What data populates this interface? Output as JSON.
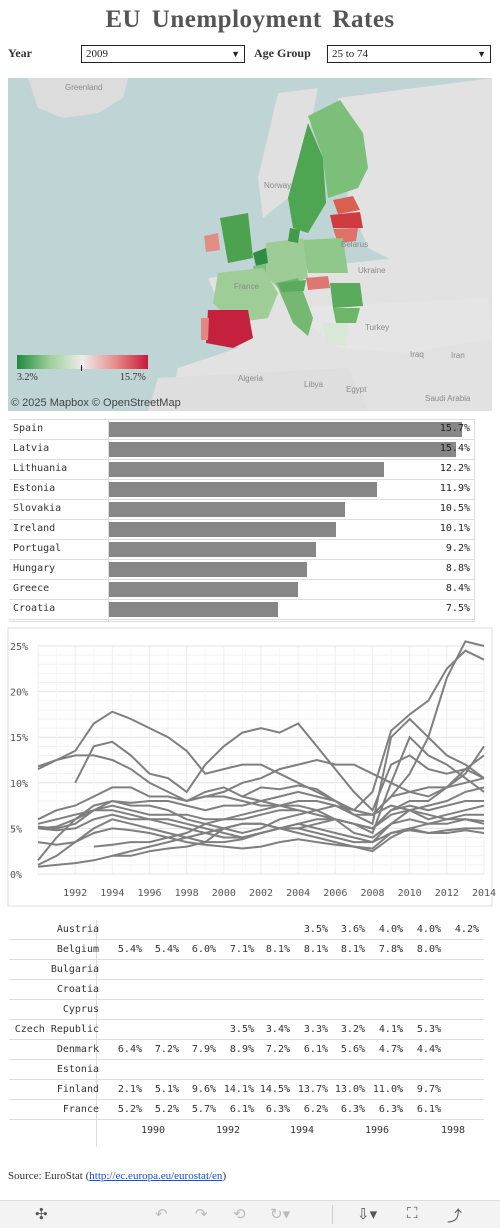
{
  "title": "EU Unemployment Rates",
  "filters": {
    "year_label": "Year",
    "year_value": "2009",
    "age_label": "Age Group",
    "age_value": "25 to 74"
  },
  "map": {
    "place_labels": [
      "Greenland",
      "Norway",
      "Belarus",
      "Ukraine",
      "France",
      "Turkey",
      "Iraq",
      "Iran",
      "Algeria",
      "Libya",
      "Egypt",
      "Saudi Arabia"
    ],
    "attribution": "© 2025 Mapbox  © OpenStreetMap",
    "legend_min": "3.2%",
    "legend_max": "15.7%",
    "colors": {
      "low": "#1e8a3e",
      "mid": "#ececec",
      "high": "#c8183a"
    }
  },
  "top_countries": [
    {
      "country": "Spain",
      "value": 15.7,
      "label": "15.7%"
    },
    {
      "country": "Latvia",
      "value": 15.4,
      "label": "15.4%"
    },
    {
      "country": "Lithuania",
      "value": 12.2,
      "label": "12.2%"
    },
    {
      "country": "Estonia",
      "value": 11.9,
      "label": "11.9%"
    },
    {
      "country": "Slovakia",
      "value": 10.5,
      "label": "10.5%"
    },
    {
      "country": "Ireland",
      "value": 10.1,
      "label": "10.1%"
    },
    {
      "country": "Portugal",
      "value": 9.2,
      "label": "9.2%"
    },
    {
      "country": "Hungary",
      "value": 8.8,
      "label": "8.8%"
    },
    {
      "country": "Greece",
      "value": 8.4,
      "label": "8.4%"
    },
    {
      "country": "Croatia",
      "value": 7.5,
      "label": "7.5%"
    }
  ],
  "chart_data": {
    "type": "line",
    "title": "",
    "xlabel": "",
    "ylabel": "",
    "xlim": [
      1990,
      2014
    ],
    "ylim": [
      0,
      25
    ],
    "x_ticks": [
      "1992",
      "1994",
      "1996",
      "1998",
      "2000",
      "2002",
      "2004",
      "2006",
      "2008",
      "2010",
      "2012",
      "2014"
    ],
    "y_ticks": [
      "0%",
      "5%",
      "10%",
      "15%",
      "20%",
      "25%"
    ],
    "grid": true,
    "line_color": "#7f7f7f",
    "series": [
      {
        "x": [
          2001,
          2002,
          2003,
          2004,
          2005,
          2006,
          2007,
          2008,
          2009,
          2010,
          2011,
          2012,
          2013,
          2014
        ],
        "y": [
          8.5,
          9.5,
          9.3,
          9.7,
          9.3,
          8.0,
          7.0,
          9.0,
          15.7,
          17.5,
          19.0,
          22.5,
          24.5,
          23.5
        ]
      },
      {
        "x": [
          1998,
          1999,
          2000,
          2001,
          2002,
          2003,
          2004,
          2005,
          2006,
          2007,
          2008,
          2009,
          2010,
          2011,
          2012,
          2013,
          2014
        ],
        "y": [
          8.0,
          9.0,
          9.5,
          8.5,
          8.0,
          7.5,
          8.0,
          8.0,
          7.5,
          6.5,
          6.5,
          8.5,
          11.0,
          15.0,
          21.5,
          25.5,
          25.0
        ]
      },
      {
        "x": [
          1994,
          1995,
          1996,
          1997,
          1998,
          1999,
          2000,
          2001,
          2002,
          2003,
          2004,
          2005,
          2006,
          2007,
          2008,
          2009,
          2010,
          2011,
          2012,
          2013,
          2014
        ],
        "y": [
          2.0,
          2.0,
          2.5,
          2.8,
          3.0,
          3.5,
          5.0,
          5.5,
          5.5,
          5.0,
          5.0,
          5.5,
          6.0,
          5.5,
          4.5,
          10.0,
          15.0,
          13.0,
          12.0,
          10.5,
          9.0
        ]
      },
      {
        "x": [
          1990,
          1991,
          1992,
          1993,
          1994,
          1995,
          1996,
          1997,
          1998,
          1999,
          2000,
          2001,
          2002,
          2003,
          2004,
          2005,
          2006,
          2007,
          2008,
          2009,
          2010,
          2011,
          2012,
          2013,
          2014
        ],
        "y": [
          11.5,
          12.5,
          13.5,
          16.5,
          17.8,
          17.0,
          16.0,
          15.0,
          13.5,
          11.0,
          11.5,
          12.0,
          12.0,
          11.0,
          10.0,
          9.0,
          8.0,
          6.5,
          5.5,
          15.0,
          17.0,
          15.0,
          13.0,
          12.0,
          10.5
        ]
      },
      {
        "x": [
          1992,
          1993,
          1994,
          1995,
          1996,
          1997,
          1998,
          1999,
          2000,
          2001,
          2002,
          2003,
          2004,
          2005,
          2006,
          2007,
          2008,
          2009,
          2010,
          2011,
          2012,
          2013,
          2014
        ],
        "y": [
          10.0,
          14.0,
          14.5,
          13.0,
          11.0,
          10.5,
          9.0,
          12.0,
          14.0,
          15.5,
          16.0,
          15.5,
          16.5,
          14.0,
          11.5,
          9.0,
          7.0,
          12.0,
          13.0,
          11.5,
          11.0,
          11.5,
          10.5
        ]
      },
      {
        "x": [
          1990,
          1991,
          1992,
          1993,
          1994,
          1995,
          1996,
          1997,
          1998,
          1999,
          2000,
          2001,
          2002,
          2003,
          2004,
          2005,
          2006,
          2007,
          2008,
          2009,
          2010,
          2011,
          2012,
          2013,
          2014
        ],
        "y": [
          11.8,
          12.5,
          13.0,
          13.0,
          12.5,
          11.5,
          10.0,
          9.0,
          8.0,
          8.5,
          9.0,
          10.0,
          10.5,
          11.5,
          12.0,
          12.5,
          12.0,
          12.0,
          11.0,
          10.0,
          9.0,
          9.5,
          9.5,
          11.0,
          14.0
        ]
      },
      {
        "x": [
          1990,
          1991,
          1992,
          1993,
          1994,
          1995,
          1996,
          1997,
          1998,
          1999,
          2000,
          2001,
          2002,
          2003,
          2004,
          2005,
          2006,
          2007,
          2008,
          2009,
          2010,
          2011,
          2012,
          2013,
          2014
        ],
        "y": [
          6.0,
          7.0,
          7.5,
          8.5,
          9.5,
          9.5,
          8.5,
          8.5,
          8.0,
          8.5,
          8.5,
          8.0,
          7.5,
          7.5,
          7.0,
          6.5,
          6.0,
          5.5,
          5.0,
          7.0,
          8.0,
          8.0,
          9.5,
          11.5,
          13.0
        ]
      },
      {
        "x": [
          1990,
          1991,
          1992,
          1993,
          1994,
          1995,
          1996,
          1997,
          1998,
          1999,
          2000,
          2001,
          2002,
          2003,
          2004,
          2005,
          2006,
          2007,
          2008,
          2009,
          2010,
          2011,
          2012,
          2013,
          2014
        ],
        "y": [
          5.2,
          5.0,
          5.5,
          7.0,
          8.0,
          7.8,
          8.0,
          8.0,
          7.5,
          7.0,
          7.5,
          7.5,
          8.0,
          8.5,
          9.0,
          8.5,
          8.0,
          7.0,
          6.5,
          8.5,
          9.0,
          8.5,
          9.5,
          10.0,
          10.5
        ]
      },
      {
        "x": [
          1990,
          1991,
          1992,
          1993,
          1994,
          1995,
          1996,
          1997,
          1998,
          1999,
          2000,
          2001,
          2002,
          2003,
          2004,
          2005,
          2006,
          2007,
          2008,
          2009,
          2010,
          2011,
          2012,
          2013,
          2014
        ],
        "y": [
          5.0,
          5.2,
          6.0,
          7.5,
          8.0,
          7.5,
          7.5,
          7.0,
          6.0,
          5.5,
          5.0,
          4.5,
          5.0,
          6.0,
          6.5,
          7.0,
          7.5,
          7.0,
          6.5,
          7.5,
          7.0,
          6.0,
          6.5,
          7.0,
          7.5
        ]
      },
      {
        "x": [
          1990,
          1991,
          1992,
          1993,
          1994,
          1995,
          1996,
          1997,
          1998,
          1999,
          2000,
          2001,
          2002,
          2003,
          2004,
          2005,
          2006,
          2007,
          2008,
          2009,
          2010,
          2011,
          2012,
          2013,
          2014
        ],
        "y": [
          5.0,
          4.8,
          5.0,
          6.0,
          6.5,
          6.0,
          6.0,
          6.0,
          5.5,
          5.0,
          4.5,
          4.0,
          4.5,
          5.0,
          5.5,
          5.0,
          4.5,
          4.0,
          3.5,
          5.5,
          6.0,
          5.5,
          5.5,
          6.0,
          5.8
        ]
      },
      {
        "x": [
          1990,
          1991,
          1992,
          1993,
          1994,
          1995,
          1996,
          1997,
          1998,
          1999,
          2000,
          2001,
          2002,
          2003,
          2004,
          2005,
          2006,
          2007,
          2008,
          2009,
          2010,
          2011,
          2012,
          2013,
          2014
        ],
        "y": [
          3.5,
          3.2,
          3.5,
          4.5,
          5.0,
          4.8,
          4.5,
          4.0,
          3.5,
          3.2,
          3.0,
          2.8,
          3.0,
          3.5,
          3.8,
          3.5,
          3.2,
          3.0,
          2.8,
          4.5,
          4.8,
          4.5,
          4.8,
          5.0,
          5.0
        ]
      },
      {
        "x": [
          1990,
          1991,
          1992,
          1993,
          1994,
          1995,
          1996,
          1997,
          1998,
          1999,
          2000,
          2001,
          2002,
          2003,
          2004,
          2005,
          2006,
          2007,
          2008,
          2009,
          2010,
          2011,
          2012,
          2013,
          2014
        ],
        "y": [
          0.8,
          1.0,
          1.2,
          1.5,
          2.0,
          2.5,
          3.0,
          3.5,
          4.0,
          4.5,
          5.0,
          5.5,
          5.5,
          5.0,
          4.5,
          4.0,
          3.5,
          3.0,
          2.5,
          4.0,
          5.0,
          5.5,
          6.0,
          6.5,
          6.5
        ]
      },
      {
        "x": [
          1990,
          1991,
          1992,
          1993,
          1994,
          1995,
          1996,
          1997,
          1998,
          1999,
          2000,
          2001,
          2002,
          2003,
          2004,
          2005,
          2006,
          2007,
          2008,
          2009,
          2010,
          2011,
          2012,
          2013,
          2014
        ],
        "y": [
          1.5,
          4.0,
          6.0,
          7.0,
          7.5,
          7.0,
          6.5,
          6.5,
          6.5,
          6.0,
          6.0,
          6.0,
          6.5,
          7.0,
          7.0,
          6.5,
          6.0,
          5.5,
          5.0,
          7.0,
          7.5,
          7.0,
          7.5,
          8.0,
          8.0
        ]
      },
      {
        "x": [
          1993,
          1994,
          1995,
          1996,
          1997,
          1998,
          1999,
          2000,
          2001,
          2002,
          2003,
          2004,
          2005,
          2006,
          2007,
          2008,
          2009,
          2010,
          2011,
          2012,
          2013,
          2014
        ],
        "y": [
          3.0,
          3.2,
          3.5,
          3.5,
          4.0,
          4.5,
          5.5,
          6.0,
          6.5,
          7.0,
          7.5,
          7.5,
          7.0,
          6.0,
          4.5,
          4.0,
          5.5,
          7.0,
          7.5,
          8.0,
          9.0,
          9.5
        ]
      },
      {
        "x": [
          1990,
          1991,
          1992,
          1993,
          1994,
          1995,
          1996,
          1997,
          1998,
          1999,
          2000,
          2001,
          2002,
          2003,
          2004,
          2005,
          2006,
          2007,
          2008,
          2009,
          2010,
          2011,
          2012,
          2013,
          2014
        ],
        "y": [
          1.0,
          2.0,
          3.5,
          5.0,
          6.0,
          5.5,
          5.0,
          4.5,
          4.0,
          3.5,
          3.5,
          3.8,
          4.5,
          5.0,
          5.5,
          6.0,
          6.0,
          5.5,
          5.0,
          6.5,
          7.0,
          6.5,
          6.0,
          6.0,
          5.5
        ]
      },
      {
        "x": [
          1990,
          1991,
          1992,
          1993,
          1994,
          1995,
          1996,
          1997,
          1998,
          1999,
          2000,
          2001,
          2002,
          2003,
          2004,
          2005,
          2006,
          2007,
          2008,
          2009,
          2010,
          2011,
          2012,
          2013,
          2014
        ],
        "y": [
          5.5,
          6.0,
          6.5,
          7.0,
          7.0,
          6.5,
          6.0,
          5.5,
          5.0,
          4.5,
          4.0,
          4.0,
          4.5,
          5.0,
          5.0,
          4.5,
          4.0,
          3.5,
          3.5,
          4.5,
          5.0,
          4.5,
          4.5,
          4.8,
          4.5
        ]
      }
    ]
  },
  "table": {
    "year_headers": [
      "1990",
      "1992",
      "1994",
      "1996",
      "1998"
    ],
    "rows": [
      {
        "country": "Austria",
        "cells": [
          "",
          "",
          "",
          "",
          "",
          "3.5%",
          "3.6%",
          "4.0%",
          "4.0%",
          "4.2%"
        ]
      },
      {
        "country": "Belgium",
        "cells": [
          "5.4%",
          "5.4%",
          "6.0%",
          "7.1%",
          "8.1%",
          "8.1%",
          "8.1%",
          "7.8%",
          "8.0%",
          ""
        ]
      },
      {
        "country": "Bulgaria",
        "cells": [
          "",
          "",
          "",
          "",
          "",
          "",
          "",
          "",
          "",
          ""
        ]
      },
      {
        "country": "Croatia",
        "cells": [
          "",
          "",
          "",
          "",
          "",
          "",
          "",
          "",
          "",
          ""
        ]
      },
      {
        "country": "Cyprus",
        "cells": [
          "",
          "",
          "",
          "",
          "",
          "",
          "",
          "",
          "",
          ""
        ]
      },
      {
        "country": "Czech Republic",
        "cells": [
          "",
          "",
          "",
          "3.5%",
          "3.4%",
          "3.3%",
          "3.2%",
          "4.1%",
          "5.3%",
          ""
        ]
      },
      {
        "country": "Denmark",
        "cells": [
          "6.4%",
          "7.2%",
          "7.9%",
          "8.9%",
          "7.2%",
          "6.1%",
          "5.6%",
          "4.7%",
          "4.4%",
          ""
        ]
      },
      {
        "country": "Estonia",
        "cells": [
          "",
          "",
          "",
          "",
          "",
          "",
          "",
          "",
          "",
          ""
        ]
      },
      {
        "country": "Finland",
        "cells": [
          "2.1%",
          "5.1%",
          "9.6%",
          "14.1%",
          "14.5%",
          "13.7%",
          "13.0%",
          "11.0%",
          "9.7%",
          ""
        ]
      },
      {
        "country": "France",
        "cells": [
          "5.2%",
          "5.2%",
          "5.7%",
          "6.1%",
          "6.3%",
          "6.2%",
          "6.3%",
          "6.3%",
          "6.1%",
          ""
        ]
      }
    ]
  },
  "source": {
    "text": "Source: EuroStat (",
    "link": "http://ec.europa.eu/eurostat/en",
    "close": ")"
  },
  "toolbar": {
    "icons": [
      "tableau-logo-icon",
      "undo-icon",
      "redo-icon",
      "revert-icon",
      "refresh-icon",
      "download-icon",
      "fullscreen-icon",
      "share-icon"
    ]
  }
}
